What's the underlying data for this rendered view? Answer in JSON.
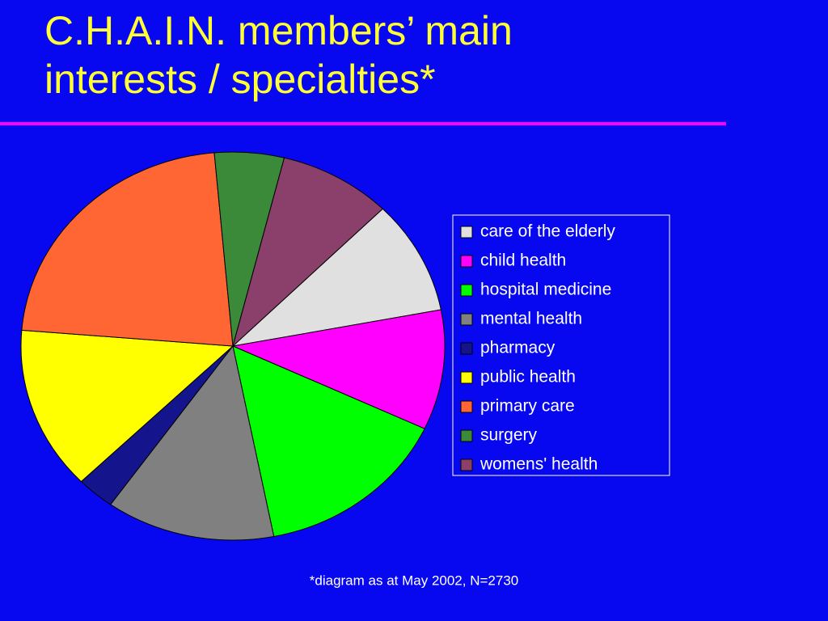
{
  "chart_data": {
    "type": "pie",
    "title": "C.H.A.I.N. members’ main interests / specialties*",
    "footnote": "*diagram as at May 2002, N=2730",
    "categories": [
      "care of the elderly",
      "child health",
      "hospital medicine",
      "mental health",
      "pharmacy",
      "public health",
      "primary care",
      "surgery",
      "womens' health"
    ],
    "values": [
      9.5,
      10,
      14.9,
      12.9,
      2.9,
      13.6,
      22.3,
      5.3,
      8.6
    ],
    "colors": [
      "#e0e0e0",
      "#ff00ff",
      "#00ff00",
      "#808080",
      "#14148c",
      "#ffff00",
      "#ff6633",
      "#3a8a3a",
      "#8b3f6b"
    ],
    "legend": "right"
  }
}
